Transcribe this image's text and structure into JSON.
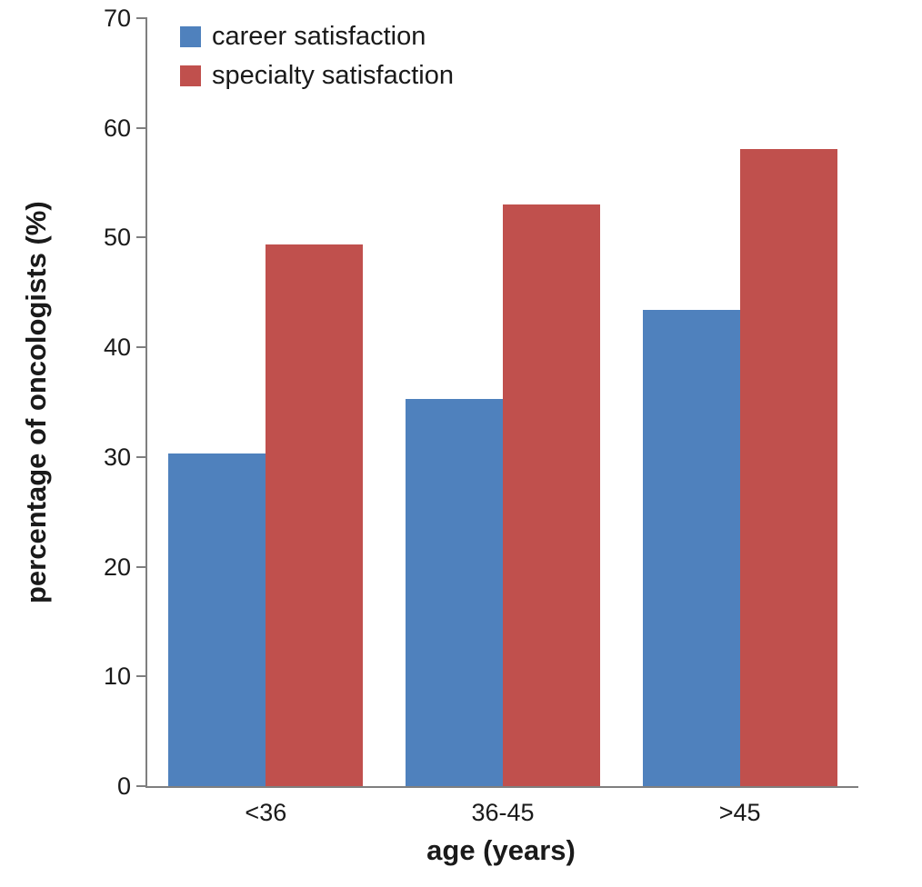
{
  "chart_data": {
    "type": "bar",
    "title": "",
    "categories": [
      "<36",
      "36-45",
      ">45"
    ],
    "series": [
      {
        "name": "career satisfaction",
        "color": "#4f81bd",
        "values": [
          30.3,
          35.3,
          43.4
        ]
      },
      {
        "name": "specialty satisfaction",
        "color": "#c0504d",
        "values": [
          49.4,
          53.0,
          58.1
        ]
      }
    ],
    "xlabel": "age (years)",
    "ylabel": "percentage of oncologists (%)",
    "ylim": [
      0,
      70
    ],
    "yticks": [
      0,
      10,
      20,
      30,
      40,
      50,
      60,
      70
    ],
    "legend_position": "top-left",
    "grid": false,
    "axis_color": "#7f7f7f"
  }
}
